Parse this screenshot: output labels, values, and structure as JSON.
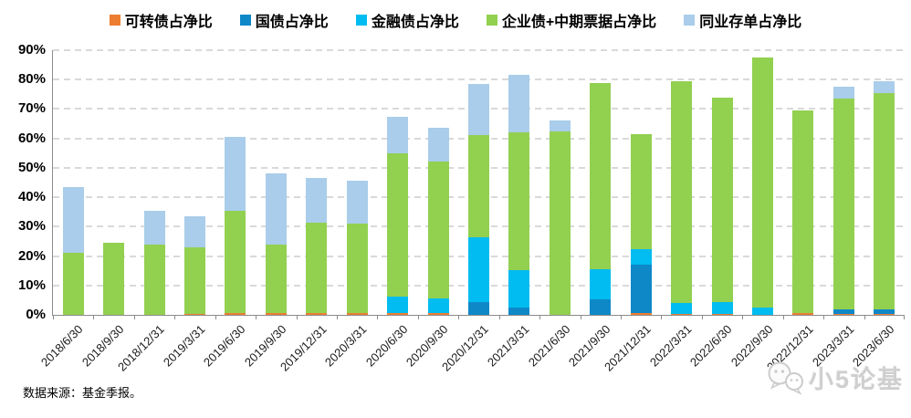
{
  "chart_data": {
    "type": "bar",
    "stacked": true,
    "title": "",
    "xlabel": "",
    "ylabel": "",
    "ylim": [
      0,
      90
    ],
    "y_tick_step": 10,
    "y_tick_format": "percent",
    "y_ticks": [
      "0%",
      "10%",
      "20%",
      "30%",
      "40%",
      "50%",
      "60%",
      "70%",
      "80%",
      "90%"
    ],
    "grid": "dashed horizontal",
    "legend_position": "top",
    "x_label_rotation": -45,
    "categories": [
      "2018/6/30",
      "2018/9/30",
      "2018/12/31",
      "2019/3/31",
      "2019/6/30",
      "2019/9/30",
      "2019/12/31",
      "2020/3/31",
      "2020/6/30",
      "2020/9/30",
      "2020/12/31",
      "2021/3/31",
      "2021/6/30",
      "2021/9/30",
      "2021/12/31",
      "2022/3/31",
      "2022/6/30",
      "2022/9/30",
      "2022/12/31",
      "2023/3/31",
      "2023/6/30"
    ],
    "series": [
      {
        "name": "可转债占净比",
        "color": "#ED7D31",
        "values": [
          0,
          0,
          0,
          0.3,
          0.7,
          0.7,
          0.7,
          0.7,
          0.5,
          0.5,
          0,
          0,
          0,
          0,
          0.5,
          0.3,
          0.3,
          0,
          0.5,
          0.3,
          0.3
        ]
      },
      {
        "name": "国债占净比",
        "color": "#0F88C8",
        "values": [
          0,
          0,
          0,
          0,
          0,
          0,
          0,
          0,
          0,
          0,
          4.5,
          2.6,
          0,
          5.2,
          16.5,
          0,
          0,
          0,
          0,
          1.5,
          1.5
        ]
      },
      {
        "name": "金融债占净比",
        "color": "#00BCF0",
        "values": [
          0,
          0,
          0,
          0,
          0,
          0,
          0,
          0,
          5.7,
          5,
          22,
          12.6,
          0,
          10.3,
          5.5,
          3.7,
          4,
          2.5,
          0,
          0,
          0
        ]
      },
      {
        "name": "企业债+中期票据占净比",
        "color": "#92D050",
        "values": [
          21,
          24.5,
          24,
          22.7,
          34.8,
          23.3,
          30.8,
          30.3,
          48.8,
          46.5,
          34.5,
          47,
          62.5,
          63.2,
          39,
          75.5,
          69.7,
          85,
          69,
          71.7,
          73.7
        ]
      },
      {
        "name": "同业存单占净比",
        "color": "#A9CDEA",
        "values": [
          22.5,
          0,
          11.5,
          10.5,
          25,
          24,
          15,
          14.5,
          12.5,
          11.5,
          17.5,
          19.3,
          3.5,
          0,
          0,
          0,
          0,
          0,
          0,
          4,
          4
        ]
      }
    ],
    "totals": [
      43.5,
      24.5,
      35.5,
      33.5,
      60.5,
      48,
      46.5,
      45.5,
      67.5,
      63.5,
      78.5,
      81.5,
      66,
      78.7,
      61.5,
      79.5,
      74,
      87.5,
      69.5,
      77.5,
      79.5
    ]
  },
  "footer": {
    "source": "数据来源：基金季报。"
  },
  "watermark": {
    "text": "小5论基",
    "icon": "wechat-logo",
    "color": "#cfcfcf"
  }
}
